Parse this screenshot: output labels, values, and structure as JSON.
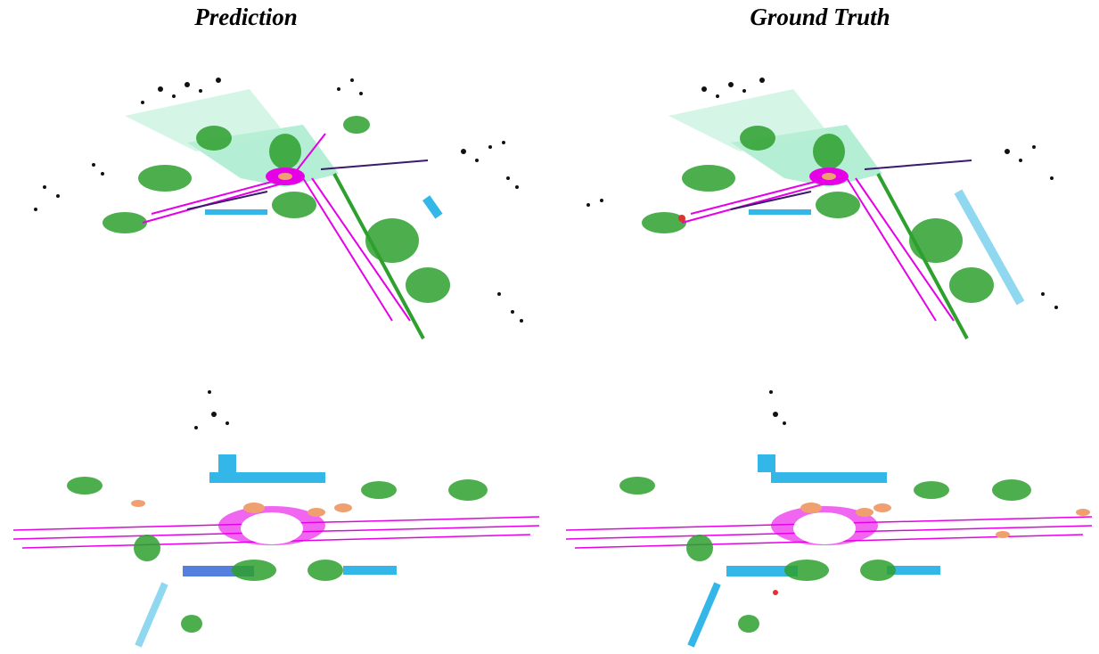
{
  "titles": {
    "prediction": "Prediction",
    "ground_truth": "Ground Truth"
  },
  "colors": {
    "road": "#e600e6",
    "vegetation": "#2ea02e",
    "terrain": "#7fe0b0",
    "building": "#33b6e8",
    "building_dark": "#2a5fd6",
    "car": "#f0a070",
    "unlabeled": "#111111",
    "sidewalk": "#3a1a6a",
    "person": "#e03030"
  },
  "panels": {
    "top_left": "prediction-view-1",
    "top_right": "ground-truth-view-1",
    "bottom_left": "prediction-view-2",
    "bottom_right": "ground-truth-view-2"
  }
}
